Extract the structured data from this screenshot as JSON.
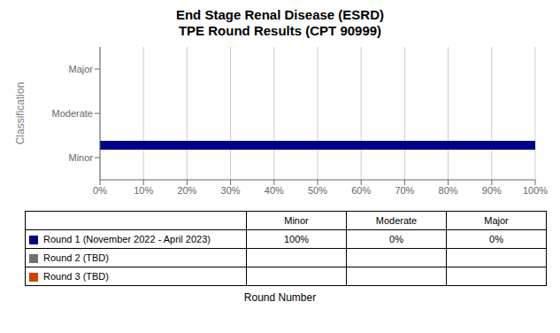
{
  "chart_data": {
    "type": "bar",
    "orientation": "horizontal",
    "title": "End Stage Renal Disease (ESRD)\nTPE Round Results (CPT 90999)",
    "xlabel": "Round Number",
    "ylabel": "Classification",
    "categories": [
      "Minor",
      "Moderate",
      "Major"
    ],
    "series": [
      {
        "name": "Round 1 (November 2022 - April 2023)",
        "color": "#00008B",
        "values": [
          1.0,
          0.0,
          0.0
        ],
        "value_labels": [
          "100%",
          "0%",
          "0%"
        ]
      },
      {
        "name": "Round 2 (TBD)",
        "color": "#707070",
        "values": [
          null,
          null,
          null
        ]
      },
      {
        "name": "Round 3 (TBD)",
        "color": "#CC4400",
        "values": [
          null,
          null,
          null
        ]
      }
    ],
    "xlim": [
      0,
      1.0
    ],
    "xticks": [
      {
        "value": 0,
        "label": "0%"
      },
      {
        "value": 0.1,
        "label": "10%"
      },
      {
        "value": 0.2,
        "label": "20%"
      },
      {
        "value": 0.3,
        "label": "30%"
      },
      {
        "value": 0.4,
        "label": "40%"
      },
      {
        "value": 0.5,
        "label": "50%"
      },
      {
        "value": 0.6,
        "label": "60%"
      },
      {
        "value": 0.7,
        "label": "70%"
      },
      {
        "value": 0.8,
        "label": "80%"
      },
      {
        "value": 0.9,
        "label": "90%"
      },
      {
        "value": 1.0,
        "label": "100%"
      }
    ],
    "grid": true
  }
}
